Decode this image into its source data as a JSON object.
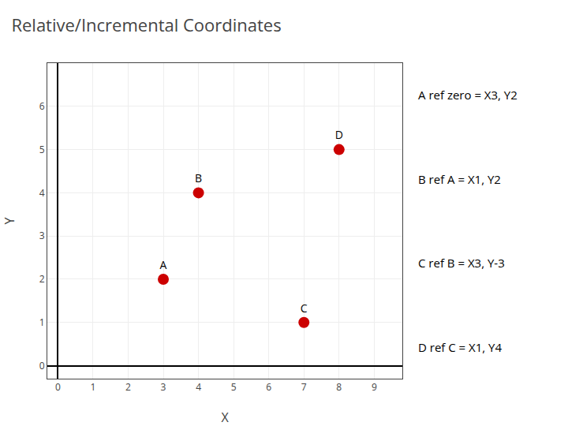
{
  "chart_data": {
    "type": "scatter",
    "title": "Relative/Incremental Coordinates",
    "x": [
      3,
      4,
      7,
      8
    ],
    "values": [
      2,
      4,
      1,
      5
    ],
    "labels": [
      "A",
      "B",
      "C",
      "D"
    ],
    "color": "#cc0000",
    "marker": "circle",
    "x_label": "X",
    "y_label": "Y",
    "xlim": [
      -0.3,
      9.8
    ],
    "ylim": [
      -0.3,
      7.0
    ],
    "xticks": [
      0,
      1,
      2,
      3,
      4,
      5,
      6,
      7,
      8,
      9
    ],
    "yticks": [
      0,
      1,
      2,
      3,
      4,
      5,
      6
    ],
    "grid": true,
    "annotations": [
      "A ref zero = X3, Y2",
      "B ref A = X1, Y2",
      "C ref B = X3, Y-3",
      "D ref C = X1, Y4"
    ]
  }
}
